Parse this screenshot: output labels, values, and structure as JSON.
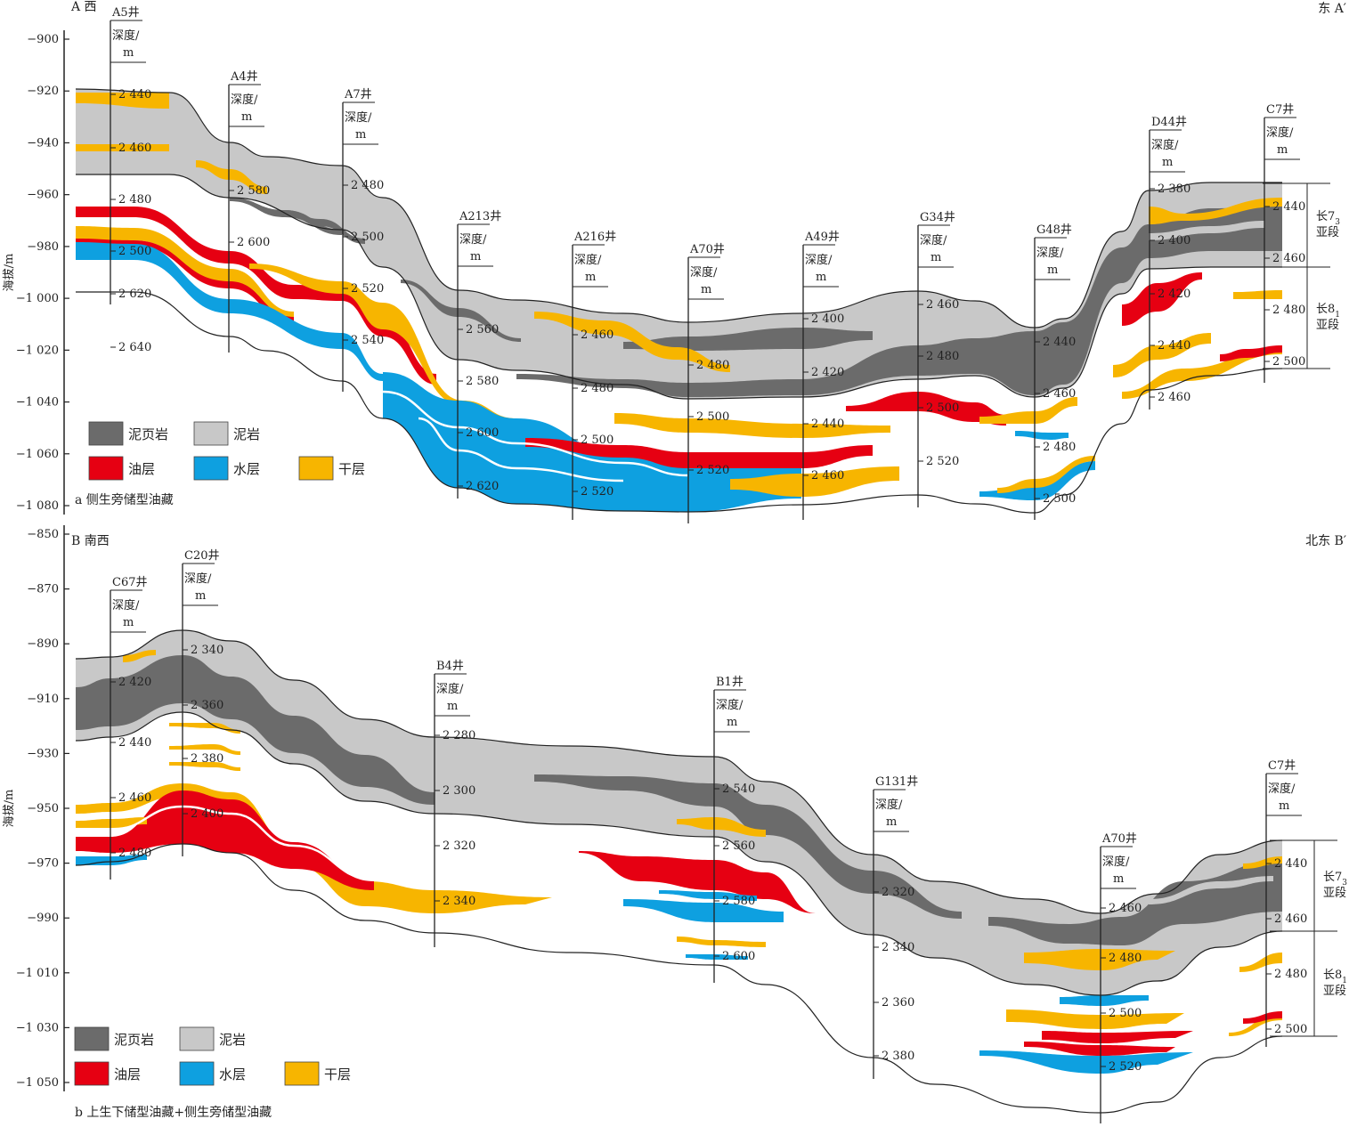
{
  "colors": {
    "shale": "#6b6b6b",
    "mudstone": "#c8c8c8",
    "oil": "#e60012",
    "water": "#0ea0e0",
    "dry": "#f7b500",
    "line": "#222222"
  },
  "panels": [
    {
      "id": "a",
      "yaxis": {
        "label": "海拔/m",
        "ticks": [
          -900,
          -920,
          -940,
          -960,
          -980,
          -1000,
          -1020,
          -1040,
          -1060,
          -1080
        ],
        "tick_labels": [
          "−900",
          "−920",
          "−940",
          "−960",
          "−980",
          "−1 000",
          "−1 020",
          "−1 040",
          "−1 060",
          "−1 080"
        ]
      },
      "left_label": "A 西",
      "right_label": "东 A′",
      "caption": "a 侧生旁储型油藏",
      "legend": [
        {
          "key": "shale",
          "label": "泥页岩"
        },
        {
          "key": "mudstone",
          "label": "泥岩"
        },
        {
          "key": "oil",
          "label": "油层"
        },
        {
          "key": "water",
          "label": "水层"
        },
        {
          "key": "dry",
          "label": "干层"
        }
      ],
      "member_labels": [
        {
          "line1": "长7",
          "sub": "3",
          "line2": "亚段"
        },
        {
          "line1": "长8",
          "sub": "1",
          "line2": "亚段"
        }
      ],
      "wells": [
        {
          "name": "A5井",
          "depth_label": "深度/",
          "unit": "m",
          "depths": [
            "2 440",
            "2 460",
            "2 480",
            "2 500",
            "2 620",
            "2 640"
          ]
        },
        {
          "name": "A4井",
          "depth_label": "深度/",
          "unit": "m",
          "depths": [
            "2 580",
            "2 600"
          ]
        },
        {
          "name": "A7井",
          "depth_label": "深度/",
          "unit": "m",
          "depths": [
            "2 480",
            "2 500",
            "2 520",
            "2 540"
          ]
        },
        {
          "name": "A213井",
          "depth_label": "深度/",
          "unit": "m",
          "depths": [
            "2 560",
            "2 580",
            "2 600",
            "2 620"
          ]
        },
        {
          "name": "A216井",
          "depth_label": "深度/",
          "unit": "m",
          "depths": [
            "2 460",
            "2 480",
            "2 500",
            "2 520"
          ]
        },
        {
          "name": "A70井",
          "depth_label": "深度/",
          "unit": "m",
          "depths": [
            "2 480",
            "2 500",
            "2 520"
          ]
        },
        {
          "name": "A49井",
          "depth_label": "深度/",
          "unit": "m",
          "depths": [
            "2 400",
            "2 420",
            "2 440",
            "2 460"
          ]
        },
        {
          "name": "G34井",
          "depth_label": "深度/",
          "unit": "m",
          "depths": [
            "2 460",
            "2 480",
            "2 500",
            "2 520"
          ]
        },
        {
          "name": "G48井",
          "depth_label": "深度/",
          "unit": "m",
          "depths": [
            "2 440",
            "2 460",
            "2 480",
            "2 500"
          ]
        },
        {
          "name": "D44井",
          "depth_label": "深度/",
          "unit": "m",
          "depths": [
            "2 380",
            "2 400",
            "2 420",
            "2 440",
            "2 460"
          ]
        },
        {
          "name": "C7井",
          "depth_label": "深度/",
          "unit": "m",
          "depths": [
            "2 440",
            "2 460",
            "2 480",
            "2 500"
          ]
        }
      ]
    },
    {
      "id": "b",
      "yaxis": {
        "label": "海拔/m",
        "ticks": [
          -850,
          -870,
          -890,
          -910,
          -930,
          -950,
          -970,
          -990,
          -1010,
          -1030,
          -1050
        ],
        "tick_labels": [
          "−850",
          "−870",
          "−890",
          "−910",
          "−930",
          "−950",
          "−970",
          "−990",
          "−1 010",
          "−1 030",
          "−1 050"
        ]
      },
      "left_label": "B 南西",
      "right_label": "北东 B′",
      "caption": "b 上生下储型油藏+侧生旁储型油藏",
      "legend": [
        {
          "key": "shale",
          "label": "泥页岩"
        },
        {
          "key": "mudstone",
          "label": "泥岩"
        },
        {
          "key": "oil",
          "label": "油层"
        },
        {
          "key": "water",
          "label": "水层"
        },
        {
          "key": "dry",
          "label": "干层"
        }
      ],
      "member_labels": [
        {
          "line1": "长7",
          "sub": "3",
          "line2": "亚段"
        },
        {
          "line1": "长8",
          "sub": "1",
          "line2": "亚段"
        }
      ],
      "wells": [
        {
          "name": "C67井",
          "depth_label": "深度/",
          "unit": "m",
          "depths": [
            "2 420",
            "2 440",
            "2 460",
            "2 480"
          ]
        },
        {
          "name": "C20井",
          "depth_label": "深度/",
          "unit": "m",
          "depths": [
            "2 340",
            "2 360",
            "2 380",
            "2 400"
          ]
        },
        {
          "name": "B4井",
          "depth_label": "深度/",
          "unit": "m",
          "depths": [
            "2 280",
            "2 300",
            "2 320",
            "2 340"
          ]
        },
        {
          "name": "B1井",
          "depth_label": "深度/",
          "unit": "m",
          "depths": [
            "2 540",
            "2 560",
            "2 580",
            "2 600"
          ]
        },
        {
          "name": "G131井",
          "depth_label": "深度/",
          "unit": "m",
          "depths": [
            "2 320",
            "2 340",
            "2 360",
            "2 380"
          ]
        },
        {
          "name": "A70井",
          "depth_label": "深度/",
          "unit": "m",
          "depths": [
            "2 460",
            "2 480",
            "2 500",
            "2 520"
          ]
        },
        {
          "name": "C7井",
          "depth_label": "深度/",
          "unit": "m",
          "depths": [
            "2 440",
            "2 460",
            "2 480",
            "2 500"
          ]
        }
      ]
    }
  ]
}
